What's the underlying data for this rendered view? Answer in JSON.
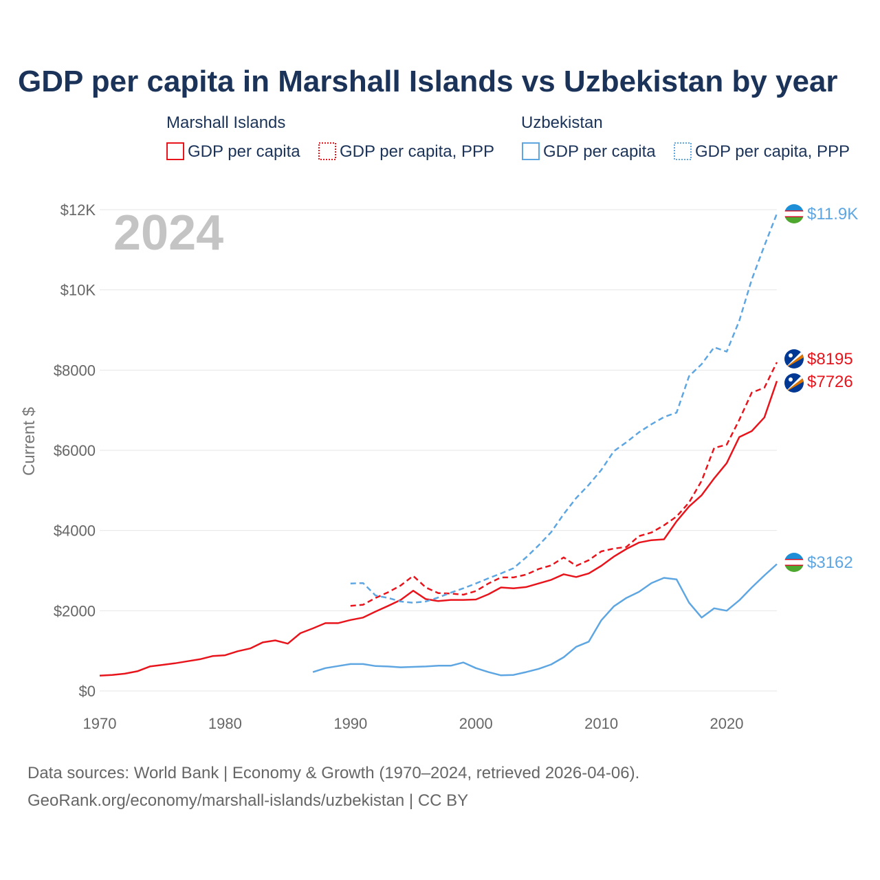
{
  "title": "GDP per capita in Marshall Islands vs Uzbekistan by year",
  "legend": {
    "groups": [
      {
        "name": "Marshall Islands",
        "items": [
          "GDP per capita",
          "GDP per capita, PPP"
        ]
      },
      {
        "name": "Uzbekistan",
        "items": [
          "GDP per capita",
          "GDP per capita, PPP"
        ]
      }
    ]
  },
  "year_label": "2024",
  "source_line1": "Data sources: World Bank | Economy & Growth (1970–2024, retrieved 2026-04-06).",
  "source_line2": "GeoRank.org/economy/marshall-islands/uzbekistan | CC BY",
  "colors": {
    "marshall": "#e8141c",
    "uzbekistan": "#5ea6e2",
    "title": "#1b3358"
  },
  "chart_data": {
    "type": "line",
    "title": "GDP per capita in Marshall Islands vs Uzbekistan by year",
    "xlabel": "",
    "ylabel": "Current $",
    "xlim": [
      1970,
      2024
    ],
    "ylim": [
      0,
      12000
    ],
    "x_ticks": [
      1970,
      1980,
      1990,
      2000,
      2010,
      2020
    ],
    "x_tick_labels": [
      "1970",
      "1980",
      "1990",
      "2000",
      "2010",
      "2020"
    ],
    "y_ticks": [
      0,
      2000,
      4000,
      6000,
      8000,
      10000,
      12000
    ],
    "y_tick_labels": [
      "$0",
      "$2000",
      "$4000",
      "$6000",
      "$8000",
      "$10K",
      "$12K"
    ],
    "grid": true,
    "series": [
      {
        "name": "Marshall Islands GDP per capita",
        "country": "Marshall Islands",
        "style": "solid",
        "color": "#e8141c",
        "end_label": "$7726",
        "x": [
          1970,
          1971,
          1972,
          1973,
          1974,
          1975,
          1976,
          1977,
          1978,
          1979,
          1980,
          1981,
          1982,
          1983,
          1984,
          1985,
          1986,
          1987,
          1988,
          1989,
          1990,
          1991,
          1992,
          1993,
          1994,
          1995,
          1996,
          1997,
          1998,
          1999,
          2000,
          2001,
          2002,
          2003,
          2004,
          2005,
          2006,
          2007,
          2008,
          2009,
          2010,
          2011,
          2012,
          2013,
          2014,
          2015,
          2016,
          2017,
          2018,
          2019,
          2020,
          2021,
          2022,
          2023,
          2024
        ],
        "values": [
          380,
          400,
          430,
          490,
          610,
          650,
          690,
          740,
          790,
          870,
          890,
          990,
          1060,
          1210,
          1260,
          1180,
          1440,
          1560,
          1690,
          1690,
          1770,
          1830,
          1980,
          2120,
          2270,
          2500,
          2290,
          2240,
          2270,
          2270,
          2280,
          2410,
          2580,
          2560,
          2590,
          2680,
          2770,
          2910,
          2840,
          2930,
          3120,
          3350,
          3540,
          3700,
          3760,
          3780,
          4230,
          4600,
          4880,
          5300,
          5680,
          6330,
          6480,
          6820,
          7726
        ]
      },
      {
        "name": "Marshall Islands GDP per capita, PPP",
        "country": "Marshall Islands",
        "style": "dashed",
        "color": "#e8141c",
        "end_label": "$8195",
        "x": [
          1990,
          1991,
          1992,
          1993,
          1994,
          1995,
          1996,
          1997,
          1998,
          1999,
          2000,
          2001,
          2002,
          2003,
          2004,
          2005,
          2006,
          2007,
          2008,
          2009,
          2010,
          2011,
          2012,
          2013,
          2014,
          2015,
          2016,
          2017,
          2018,
          2019,
          2020,
          2021,
          2022,
          2023,
          2024
        ],
        "values": [
          2120,
          2150,
          2320,
          2460,
          2630,
          2870,
          2580,
          2440,
          2430,
          2400,
          2490,
          2680,
          2830,
          2830,
          2900,
          3040,
          3130,
          3330,
          3120,
          3260,
          3480,
          3550,
          3590,
          3860,
          3950,
          4130,
          4350,
          4700,
          5240,
          6060,
          6140,
          6760,
          7440,
          7560,
          8195
        ]
      },
      {
        "name": "Uzbekistan GDP per capita",
        "country": "Uzbekistan",
        "style": "solid",
        "color": "#5ea6e2",
        "end_label": "$3162",
        "x": [
          1987,
          1988,
          1989,
          1990,
          1991,
          1992,
          1993,
          1994,
          1995,
          1996,
          1997,
          1998,
          1999,
          2000,
          2001,
          2002,
          2003,
          2004,
          2005,
          2006,
          2007,
          2008,
          2009,
          2010,
          2011,
          2012,
          2013,
          2014,
          2015,
          2016,
          2017,
          2018,
          2019,
          2020,
          2021,
          2022,
          2023,
          2024
        ],
        "values": [
          470,
          570,
          620,
          670,
          670,
          620,
          610,
          590,
          600,
          610,
          630,
          630,
          710,
          570,
          470,
          390,
          400,
          470,
          550,
          660,
          840,
          1100,
          1230,
          1760,
          2110,
          2320,
          2470,
          2690,
          2820,
          2780,
          2200,
          1830,
          2060,
          2000,
          2260,
          2580,
          2880,
          3162
        ]
      },
      {
        "name": "Uzbekistan GDP per capita, PPP",
        "country": "Uzbekistan",
        "style": "dashed",
        "color": "#5ea6e2",
        "end_label": "$11.9K",
        "x": [
          1990,
          1991,
          1992,
          1993,
          1994,
          1995,
          1996,
          1997,
          1998,
          1999,
          2000,
          2001,
          2002,
          2003,
          2004,
          2005,
          2006,
          2007,
          2008,
          2009,
          2010,
          2011,
          2012,
          2013,
          2014,
          2015,
          2016,
          2017,
          2018,
          2019,
          2020,
          2021,
          2022,
          2023,
          2024
        ],
        "values": [
          2680,
          2690,
          2380,
          2320,
          2230,
          2200,
          2230,
          2330,
          2450,
          2560,
          2680,
          2810,
          2930,
          3060,
          3330,
          3630,
          3960,
          4410,
          4810,
          5140,
          5510,
          5980,
          6200,
          6450,
          6650,
          6830,
          6940,
          7850,
          8150,
          8570,
          8460,
          9230,
          10260,
          11100,
          11900
        ]
      }
    ]
  }
}
